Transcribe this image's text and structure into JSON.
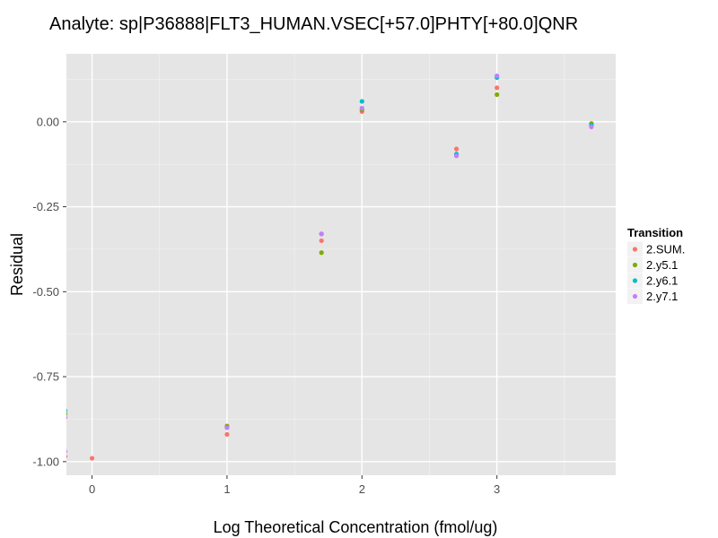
{
  "chart_data": {
    "type": "scatter",
    "title": "Analyte: sp|P36888|FLT3_HUMAN.VSEC[+57.0]PHTY[+80.0]QNR",
    "xlabel": "Log Theoretical Concentration (fmol/ug)",
    "ylabel": "Residual",
    "xlim": [
      -0.19,
      3.88
    ],
    "ylim": [
      -1.04,
      0.2
    ],
    "x_ticks": [
      0,
      1,
      2,
      3
    ],
    "x_tick_labels": [
      "0",
      "1",
      "2",
      "3"
    ],
    "y_ticks": [
      -1.0,
      -0.75,
      -0.5,
      -0.25,
      0.0
    ],
    "y_tick_labels": [
      "-1.00",
      "-0.75",
      "-0.50",
      "-0.25",
      "0.00"
    ],
    "grid": true,
    "legend": {
      "title": "Transition",
      "position": "right"
    },
    "series": [
      {
        "name": "2.SUM.",
        "color": "#F8766D",
        "x": [
          -0.2,
          0.0,
          1.0,
          1.7,
          2.0,
          2.7,
          3.0,
          3.7
        ],
        "y": [
          -0.985,
          -0.99,
          -0.92,
          -0.35,
          0.03,
          -0.08,
          0.1,
          -0.01
        ]
      },
      {
        "name": "2.y5.1",
        "color": "#7CAE00",
        "x": [
          -0.2,
          1.0,
          1.7,
          2.0,
          2.7,
          3.0,
          3.7
        ],
        "y": [
          -0.86,
          -0.895,
          -0.385,
          0.035,
          -0.1,
          0.08,
          -0.005
        ]
      },
      {
        "name": "2.y6.1",
        "color": "#00BFC4",
        "x": [
          -0.2,
          1.0,
          1.7,
          2.0,
          2.7,
          3.0,
          3.7
        ],
        "y": [
          -0.85,
          -0.9,
          -0.33,
          0.06,
          -0.095,
          0.13,
          -0.01
        ]
      },
      {
        "name": "2.y7.1",
        "color": "#C77CFF",
        "x": [
          -0.2,
          -0.2,
          1.0,
          1.7,
          2.0,
          2.7,
          3.0,
          3.7
        ],
        "y": [
          -0.97,
          -0.87,
          -0.9,
          -0.33,
          0.04,
          -0.1,
          0.135,
          -0.015
        ]
      }
    ]
  }
}
